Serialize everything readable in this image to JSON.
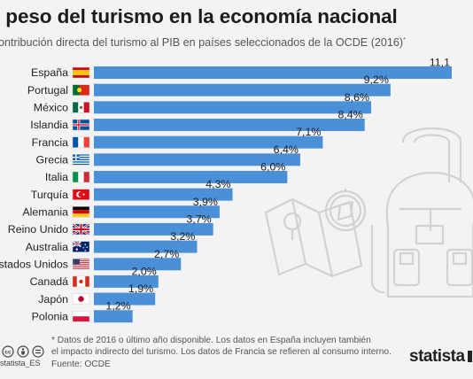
{
  "header": {
    "title": "l peso del turismo en la economía nacional",
    "subtitle": "ontribución directa del turismo al PIB en países seleccionados de la OCDE (2016)",
    "subtitle_mark": "*"
  },
  "chart_data": {
    "type": "bar",
    "orientation": "horizontal",
    "title": "l peso del turismo en la economía nacional",
    "subtitle": "ontribución directa del turismo al PIB en países seleccionados de la OCDE (2016)*",
    "unit": "%",
    "categories": [
      "España",
      "Portugal",
      "México",
      "Islandia",
      "Francia",
      "Grecia",
      "Italia",
      "Turquía",
      "Alemania",
      "Reino Unido",
      "Australia",
      "stados Unidos",
      "Canadá",
      "Japón",
      "Polonia"
    ],
    "values": [
      11.1,
      9.2,
      8.6,
      8.4,
      7.1,
      6.4,
      6.0,
      4.3,
      3.9,
      3.7,
      3.2,
      2.7,
      2.0,
      1.9,
      1.2
    ],
    "value_labels": [
      "11,1",
      "9,2%",
      "8,6%",
      "8,4%",
      "7,1%",
      "6,4%",
      "6,0%",
      "4,3%",
      "3,9%",
      "3,7%",
      "3,2%",
      "2,7%",
      "2,0%",
      "1,9%",
      "1,2%"
    ],
    "flags": [
      "spain",
      "portugal",
      "mexico",
      "iceland",
      "france",
      "greece",
      "italy",
      "turkey",
      "germany",
      "uk",
      "australia",
      "usa",
      "canada",
      "japan",
      "poland"
    ],
    "bar_color": "#4a90d9",
    "xlim": [
      0,
      11.1
    ],
    "grid": false
  },
  "footer": {
    "note_line1": "* Datos de 2016 o último año disponible. Los datos en España incluyen también",
    "note_line2": "el impacto indirecto del turismo. Los datos de Francia se refieren al consumo interno.",
    "source": "Fuente: OCDE",
    "handle": "statista_ES",
    "brand": "statista",
    "license_icons": [
      "cc-icon",
      "by-icon",
      "equals-icon"
    ]
  }
}
